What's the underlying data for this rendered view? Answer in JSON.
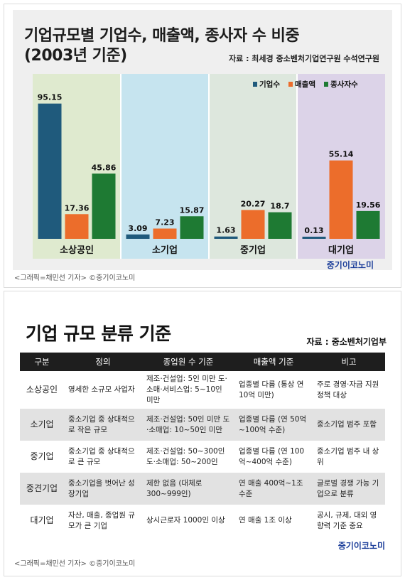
{
  "chart_data": {
    "type": "bar",
    "title": "기업규모별 기업수, 매출액, 종사자 수 비중",
    "subtitle": "(2003년 기준)",
    "source": "자료 : 최세경 중소벤처기업연구원 수석연구원",
    "categories": [
      "소상공인",
      "소기업",
      "중기업",
      "대기업"
    ],
    "series": [
      {
        "name": "기업수",
        "color": "#1f5a7c",
        "values": [
          95.15,
          3.09,
          1.63,
          0.13
        ]
      },
      {
        "name": "매출액",
        "color": "#ec6d2b",
        "values": [
          17.36,
          7.23,
          20.27,
          55.14
        ]
      },
      {
        "name": "종사자수",
        "color": "#1e7a33",
        "values": [
          45.86,
          15.87,
          18.7,
          19.56
        ]
      }
    ],
    "value_labels": [
      [
        "95.15",
        "17.36",
        "45.86"
      ],
      [
        "3.09",
        "7.23",
        "15.87"
      ],
      [
        "1.63",
        "20.27",
        "18.7"
      ],
      [
        "0.13",
        "55.14",
        "19.56"
      ]
    ],
    "ylim": [
      0,
      100
    ],
    "grid": false,
    "legend": "top-right",
    "category_backgrounds": [
      "#dfeacf",
      "#c6e4ef",
      "#dde7dd",
      "#dcd3e8"
    ]
  },
  "credit": "<그래픽=채민선 기자>  ©중기이코노미",
  "brand": "중기이코노미",
  "table": {
    "title": "기업 규모 분류 기준",
    "source": "자료 : 중소벤처기업부",
    "headers": [
      "구분",
      "정의",
      "종업원 수 기준",
      "매출액 기준",
      "비고"
    ],
    "rows": [
      {
        "cat": "소상공인",
        "def": "영세한 소규모 사업자",
        "emp": "제조·건설업: 5인 미만 도·소매·서비스업: 5~10인 미만",
        "sales": "업종별 다름 (통상 연 10억 미만)",
        "note": "주로 경영·자금 지원 정책 대상"
      },
      {
        "cat": "소기업",
        "def": "중소기업 중 상대적으로 작은 규모",
        "emp": "제조·건설업: 50인 미만 도·소매업: 10~50인 미만",
        "sales": "업종별 다름 (연 50억~100억 수준)",
        "note": "중소기업 범주 포함"
      },
      {
        "cat": "중기업",
        "def": "중소기업 중 상대적으로 큰 규모",
        "emp": "제조·건설업: 50~300인 도·소매업: 50~200인",
        "sales": "업종별 다름 (연 100억~400억 수준)",
        "note": "중소기업 범주 내 상위"
      },
      {
        "cat": "중견기업",
        "def": "중소기업을 벗어난 성장기업",
        "emp": "제한 없음 (대체로 300~999인)",
        "sales": "연 매출 400억~1조 수준",
        "note": "글로벌 경쟁 가능 기업으로 분류"
      },
      {
        "cat": "대기업",
        "def": "자산, 매출, 종업원 규모가 큰 기업",
        "emp": "상시근로자 1000인 이상",
        "sales": "연 매출 1조 이상",
        "note": "공시, 규제, 대외 영향력 기준 중요"
      }
    ]
  }
}
